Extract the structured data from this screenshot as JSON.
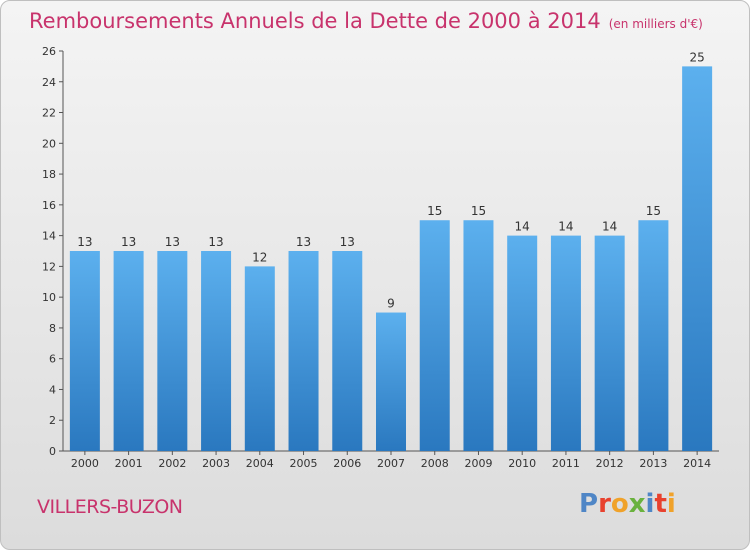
{
  "title": "Remboursements Annuels de la Dette de 2000 à 2014",
  "unit": "(en milliers d'€)",
  "commune": "VILLERS-BUZON",
  "brand": {
    "letters": [
      "P",
      "r",
      "o",
      "x",
      "i",
      "t",
      "i"
    ],
    "colors": [
      "#4f86c6",
      "#e8412e",
      "#f0a22a",
      "#6ab23e",
      "#4f86c6",
      "#e8412e",
      "#f0a22a"
    ]
  },
  "chart_data": {
    "type": "bar",
    "categories": [
      "2000",
      "2001",
      "2002",
      "2003",
      "2004",
      "2005",
      "2006",
      "2007",
      "2008",
      "2009",
      "2010",
      "2011",
      "2012",
      "2013",
      "2014"
    ],
    "values": [
      13,
      13,
      13,
      13,
      12,
      13,
      13,
      9,
      15,
      15,
      14,
      14,
      14,
      15,
      25
    ],
    "ylim": [
      0,
      26
    ],
    "yticks": [
      0,
      2,
      4,
      6,
      8,
      10,
      12,
      14,
      16,
      18,
      20,
      22,
      24,
      26
    ],
    "grid": false,
    "bar_color": "#3d8fd6"
  }
}
